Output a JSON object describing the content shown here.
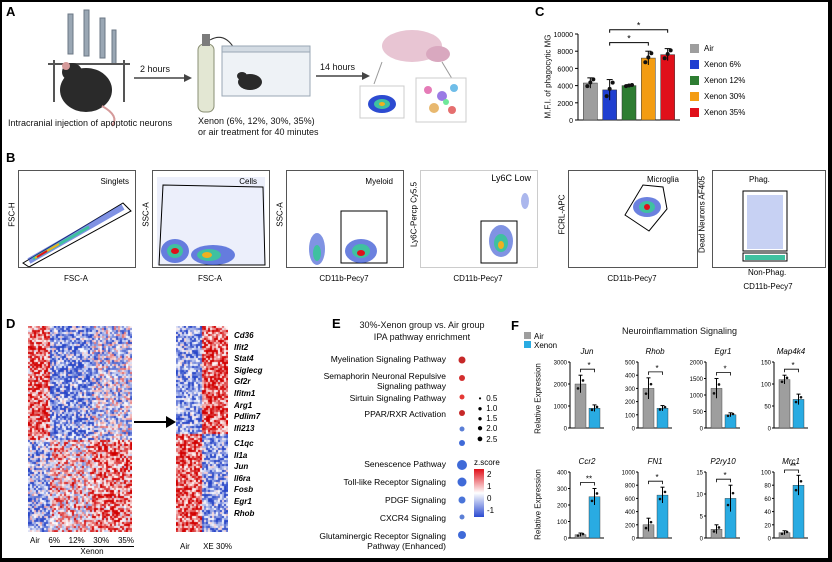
{
  "panels": {
    "a": "A",
    "b": "B",
    "c": "C",
    "d": "D",
    "e": "E",
    "f": "F"
  },
  "panelA": {
    "injection": "Intracranial injection of apoptotic neurons",
    "arrow1": "2 hours",
    "arrow2": "14 hours",
    "treatment": "Xenon (6%, 12%, 30%, 35%)\nor air treatment for 40 minutes"
  },
  "panelC": {
    "ylabel": "M.F.I. of phagocytic MG",
    "sig": [
      "*",
      "*"
    ],
    "legend": [
      {
        "label": "Air",
        "color": "#9e9e9e"
      },
      {
        "label": "Xenon 6%",
        "color": "#1f3fd0"
      },
      {
        "label": "Xenon 12%",
        "color": "#2e7d32"
      },
      {
        "label": "Xenon 30%",
        "color": "#f39c12"
      },
      {
        "label": "Xenon 35%",
        "color": "#e0101a"
      }
    ]
  },
  "panelB": {
    "plots": [
      {
        "gate": "Singlets",
        "x": "FSC-A",
        "y": "FSC-H"
      },
      {
        "gate": "Cells",
        "x": "FSC-A",
        "y": "SSC-A"
      },
      {
        "gate": "Myeloid",
        "x": "CD11b-Pecy7",
        "y": "SSC-A"
      },
      {
        "gate": "Ly6C Low",
        "x": "CD11b-Pecy7",
        "y": "Ly6C-Percp Cy5.5"
      },
      {
        "gate": "Microglia",
        "x": "CD11b-Pecy7",
        "y": "FCRL-APC"
      },
      {
        "gate": "Phag.",
        "gate2": "Non-Phag.",
        "x": "CD11b-Pecy7",
        "y": "Dead Neurons AF405"
      }
    ]
  },
  "panelD": {
    "groups": [
      "Air",
      "6%",
      "12%",
      "30%",
      "35%"
    ],
    "group_title": "Xenon",
    "right_groups": [
      "Air",
      "XE 30%"
    ],
    "genes_top": [
      "Cd36",
      "Ifit2",
      "Stat4",
      "Siglecg",
      "Gf2r",
      "Ifitm1",
      "Arg1",
      "Pdlim7",
      "Ifi213"
    ],
    "genes_bottom": [
      "C1qc",
      "Il1a",
      "Jun",
      "Il6ra",
      "Fosb",
      "Egr1",
      "Rhob"
    ]
  },
  "panelE": {
    "title1": "30%-Xenon group vs. Air group",
    "title2": "IPA pathway enrichment",
    "pathways": [
      "Myelination Signaling Pathway",
      "Semaphorin Neuronal Repulsive Signaling pathway",
      "Sirtuin Signaling Pathway",
      "PPAR/RXR Activation",
      "Senescence Pathway",
      "Toll-like Receptor Signaling",
      "PDGF Signaling",
      "CXCR4 Signaling",
      "Glutaminergic Receptor Signaling Pathway (Enhanced)"
    ],
    "size_values": [
      "0.5",
      "1.0",
      "1.5",
      "2.0",
      "2.5"
    ],
    "zscore_label": "z.score",
    "zscore_values": [
      "2",
      "1",
      "0",
      "-1"
    ]
  },
  "panelF": {
    "title": "Neuroinflammation Signaling",
    "legend": [
      {
        "label": "Air",
        "color": "#9e9e9e"
      },
      {
        "label": "Xenon",
        "color": "#29abe2"
      }
    ],
    "ylabel": "Relative Expression"
  },
  "chart_data": [
    {
      "type": "bar",
      "panel": "C",
      "ylabel": "M.F.I. of phagocytic MG",
      "categories": [
        "Air",
        "Xenon 6%",
        "Xenon 12%",
        "Xenon 30%",
        "Xenon 35%"
      ],
      "values": [
        4300,
        3500,
        4000,
        7200,
        7600
      ],
      "errors": [
        600,
        1200,
        100,
        800,
        700
      ],
      "ylim": [
        0,
        10000
      ],
      "yticks": [
        "0",
        "2000",
        "4000",
        "6000",
        "8000",
        "10000"
      ]
    },
    {
      "type": "bar",
      "panel": "F",
      "gene": "Jun",
      "categories": [
        "Air",
        "Xenon"
      ],
      "values": [
        2000,
        900
      ],
      "errors": [
        400,
        150
      ],
      "ylim": [
        0,
        3000
      ],
      "yticks": [
        "0",
        "1000",
        "2000",
        "3000"
      ],
      "sig": "*"
    },
    {
      "type": "bar",
      "panel": "F",
      "gene": "Rhob",
      "categories": [
        "Air",
        "Xenon"
      ],
      "values": [
        300,
        150
      ],
      "errors": [
        80,
        20
      ],
      "ylim": [
        0,
        500
      ],
      "yticks": [
        "0",
        "100",
        "200",
        "300",
        "400",
        "500"
      ],
      "sig": "*"
    },
    {
      "type": "bar",
      "panel": "F",
      "gene": "Egr1",
      "categories": [
        "Air",
        "Xenon"
      ],
      "values": [
        1200,
        400
      ],
      "errors": [
        300,
        60
      ],
      "ylim": [
        0,
        2000
      ],
      "yticks": [
        "0",
        "500",
        "1000",
        "1500",
        "2000"
      ],
      "sig": "*"
    },
    {
      "type": "bar",
      "panel": "F",
      "gene": "Map4k4",
      "categories": [
        "Air",
        "Xenon"
      ],
      "values": [
        110,
        65
      ],
      "errors": [
        10,
        12
      ],
      "ylim": [
        0,
        150
      ],
      "yticks": [
        "0",
        "50",
        "100",
        "150"
      ],
      "sig": "*"
    },
    {
      "type": "bar",
      "panel": "F",
      "gene": "Ccr2",
      "categories": [
        "Air",
        "Xenon"
      ],
      "values": [
        20,
        250
      ],
      "errors": [
        10,
        50
      ],
      "ylim": [
        0,
        400
      ],
      "yticks": [
        "0",
        "100",
        "200",
        "300",
        "400"
      ],
      "sig": "**"
    },
    {
      "type": "bar",
      "panel": "F",
      "gene": "FN1",
      "categories": [
        "Air",
        "Xenon"
      ],
      "values": [
        200,
        650
      ],
      "errors": [
        100,
        120
      ],
      "ylim": [
        0,
        1000
      ],
      "yticks": [
        "0",
        "200",
        "400",
        "600",
        "800",
        "1000"
      ],
      "sig": "*"
    },
    {
      "type": "bar",
      "panel": "F",
      "gene": "P2ry10",
      "categories": [
        "Air",
        "Xenon"
      ],
      "values": [
        2,
        9
      ],
      "errors": [
        1,
        3
      ],
      "ylim": [
        0,
        15
      ],
      "yticks": [
        "0",
        "5",
        "10",
        "15"
      ],
      "sig": "*"
    },
    {
      "type": "bar",
      "panel": "F",
      "gene": "Mrc1",
      "categories": [
        "Air",
        "Xenon"
      ],
      "values": [
        8,
        80
      ],
      "errors": [
        3,
        15
      ],
      "ylim": [
        0,
        100
      ],
      "yticks": [
        "0",
        "20",
        "40",
        "60",
        "80",
        "100"
      ],
      "sig": "**"
    }
  ]
}
